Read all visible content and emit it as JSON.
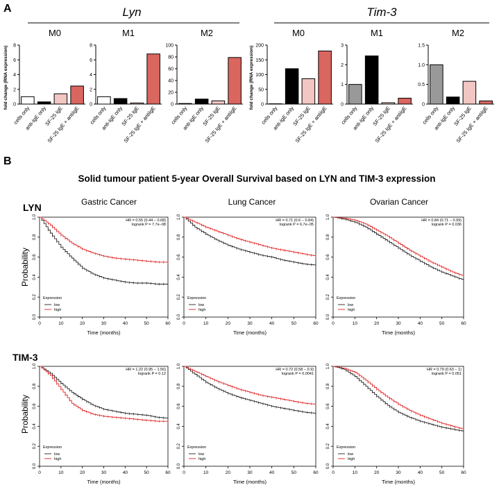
{
  "panel_a": {
    "label": "A",
    "ylabel": "fold change (RNA expression)",
    "groups": [
      {
        "title": "Lyn",
        "subtitles": [
          "M0",
          "M1",
          "M2"
        ]
      },
      {
        "title": "Tim-3",
        "subtitles": [
          "M0",
          "M1",
          "M2"
        ]
      }
    ]
  },
  "panel_b": {
    "label": "B",
    "title": "Solid tumour patient 5-year Overall Survival based on LYN and TIM-3 expression",
    "row_labels": [
      "LYN",
      "TIM-3"
    ],
    "column_titles": [
      "Gastric Cancer",
      "Lung Cancer",
      "Ovarian Cancer"
    ],
    "ylabel": "Probability",
    "xlabel": "Time (months)",
    "legend": {
      "title": "Expression",
      "low": "low",
      "high": "high"
    }
  },
  "colors": {
    "low": "#222222",
    "high": "#e02020"
  },
  "chart_data": [
    {
      "type": "bar",
      "group": "Lyn",
      "title": "M0",
      "categories": [
        "cells only",
        "anti-IgE only",
        "SF-25 IgE",
        "SF-25 IgE + antiIgE"
      ],
      "values": [
        1.0,
        0.3,
        1.4,
        2.45
      ],
      "colors": [
        "#ffffff",
        "#000000",
        "#f2c6c2",
        "#d9665f"
      ],
      "ylim": [
        0,
        8
      ],
      "yticks": [
        "0",
        "2",
        "4",
        "6",
        "8"
      ]
    },
    {
      "type": "bar",
      "group": "Lyn",
      "title": "M1",
      "categories": [
        "cells only",
        "anti-IgE only",
        "SF-25 IgE",
        "SF-25 IgE + antiIgE"
      ],
      "values": [
        1.0,
        0.75,
        0.15,
        6.8
      ],
      "colors": [
        "#ffffff",
        "#000000",
        "#f2c6c2",
        "#d9665f"
      ],
      "ylim": [
        0,
        8
      ],
      "yticks": [
        "0",
        "2",
        "4",
        "6",
        "8"
      ]
    },
    {
      "type": "bar",
      "group": "Lyn",
      "title": "M2",
      "categories": [
        "cells only",
        "anti-IgE only",
        "SF-25 IgE",
        "SF-25 IgE + antiIgE"
      ],
      "values": [
        1.0,
        8.5,
        5.5,
        79
      ],
      "colors": [
        "#ffffff",
        "#000000",
        "#f2c6c2",
        "#d9665f"
      ],
      "ylim": [
        0,
        100
      ],
      "yticks": [
        "0",
        "20",
        "40",
        "60",
        "80",
        "100"
      ]
    },
    {
      "type": "bar",
      "group": "Tim-3",
      "title": "M0",
      "categories": [
        "cells only",
        "anti-IgE only",
        "SF-25 IgE",
        "SF-25 IgE + antiIgE"
      ],
      "values": [
        1.0,
        120,
        86,
        180
      ],
      "colors": [
        "#999999",
        "#000000",
        "#f2c6c2",
        "#d9665f"
      ],
      "ylim": [
        0,
        200
      ],
      "yticks": [
        "0",
        "50",
        "100",
        "150",
        "200"
      ]
    },
    {
      "type": "bar",
      "group": "Tim-3",
      "title": "M1",
      "categories": [
        "cells only",
        "anti-IgE only",
        "SF-25 IgE",
        "SF-25 IgE + antiIgE"
      ],
      "values": [
        1.0,
        2.45,
        0.07,
        0.3
      ],
      "colors": [
        "#999999",
        "#000000",
        "#f2c6c2",
        "#d9665f"
      ],
      "ylim": [
        0,
        3
      ],
      "yticks": [
        "0",
        "1",
        "2",
        "3"
      ]
    },
    {
      "type": "bar",
      "group": "Tim-3",
      "title": "M2",
      "categories": [
        "cells only",
        "anti-IgE only",
        "SF-25 IgE",
        "SF-25 IgE + antiIgE"
      ],
      "values": [
        1.0,
        0.18,
        0.58,
        0.08
      ],
      "colors": [
        "#999999",
        "#000000",
        "#f2c6c2",
        "#d9665f"
      ],
      "ylim": [
        0,
        1.5
      ],
      "yticks": [
        "0",
        "0.5",
        "1.0",
        "1.5"
      ]
    },
    {
      "type": "line",
      "gene": "LYN",
      "cancer": "Gastric Cancer",
      "hr_text": "HR = 0.55 (0.44 − 0.68)",
      "p_text": "logrank P = 7.7e−08",
      "x": [
        0,
        5,
        10,
        15,
        20,
        25,
        30,
        35,
        40,
        45,
        50,
        55,
        60
      ],
      "series": [
        {
          "name": "low",
          "values": [
            1.0,
            0.84,
            0.7,
            0.59,
            0.49,
            0.43,
            0.39,
            0.37,
            0.35,
            0.34,
            0.34,
            0.33,
            0.33
          ]
        },
        {
          "name": "high",
          "values": [
            1.0,
            0.92,
            0.82,
            0.74,
            0.68,
            0.64,
            0.61,
            0.59,
            0.58,
            0.57,
            0.56,
            0.55,
            0.55
          ]
        }
      ],
      "xticks": [
        "0",
        "10",
        "20",
        "30",
        "40",
        "50",
        "60"
      ],
      "yticks": [
        "0.0",
        "0.2",
        "0.4",
        "0.6",
        "0.8",
        "1.0"
      ]
    },
    {
      "type": "line",
      "gene": "LYN",
      "cancer": "Lung Cancer",
      "hr_text": "HR = 0.71 (0.6 − 0.84)",
      "p_text": "logrank P = 6.7e−05",
      "x": [
        0,
        5,
        10,
        15,
        20,
        25,
        30,
        35,
        40,
        45,
        50,
        55,
        60
      ],
      "series": [
        {
          "name": "low",
          "values": [
            1.0,
            0.9,
            0.83,
            0.77,
            0.72,
            0.68,
            0.65,
            0.62,
            0.6,
            0.57,
            0.55,
            0.53,
            0.52
          ]
        },
        {
          "name": "high",
          "values": [
            1.0,
            0.95,
            0.9,
            0.86,
            0.82,
            0.78,
            0.75,
            0.72,
            0.69,
            0.67,
            0.65,
            0.63,
            0.61
          ]
        }
      ],
      "xticks": [
        "0",
        "10",
        "20",
        "30",
        "40",
        "50",
        "60"
      ],
      "yticks": [
        "0.0",
        "0.2",
        "0.4",
        "0.6",
        "0.8",
        "1.0"
      ]
    },
    {
      "type": "line",
      "gene": "LYN",
      "cancer": "Ovarian Cancer",
      "hr_text": "HR = 0.84 (0.71 − 0.99)",
      "p_text": "logrank P = 0.036",
      "x": [
        0,
        5,
        10,
        15,
        20,
        25,
        30,
        35,
        40,
        45,
        50,
        55,
        60
      ],
      "series": [
        {
          "name": "low",
          "values": [
            1.0,
            0.98,
            0.95,
            0.9,
            0.83,
            0.76,
            0.69,
            0.62,
            0.56,
            0.5,
            0.45,
            0.41,
            0.37
          ]
        },
        {
          "name": "high",
          "values": [
            1.0,
            0.99,
            0.97,
            0.93,
            0.87,
            0.81,
            0.74,
            0.67,
            0.61,
            0.55,
            0.5,
            0.45,
            0.41
          ]
        }
      ],
      "xticks": [
        "0",
        "10",
        "20",
        "30",
        "40",
        "50",
        "60"
      ],
      "yticks": [
        "0.0",
        "0.2",
        "0.4",
        "0.6",
        "0.8",
        "1.0"
      ]
    },
    {
      "type": "line",
      "gene": "TIM-3",
      "cancer": "Gastric Cancer",
      "hr_text": "HR = 1.22 (0.95 − 1.56)",
      "p_text": "logrank P = 0.12",
      "x": [
        0,
        5,
        10,
        15,
        20,
        25,
        30,
        35,
        40,
        45,
        50,
        55,
        60
      ],
      "series": [
        {
          "name": "low",
          "values": [
            1.0,
            0.93,
            0.83,
            0.74,
            0.67,
            0.61,
            0.57,
            0.55,
            0.53,
            0.52,
            0.51,
            0.49,
            0.48
          ]
        },
        {
          "name": "high",
          "values": [
            1.0,
            0.91,
            0.77,
            0.63,
            0.56,
            0.52,
            0.5,
            0.49,
            0.48,
            0.47,
            0.46,
            0.45,
            0.45
          ]
        }
      ],
      "xticks": [
        "0",
        "10",
        "20",
        "30",
        "40",
        "50",
        "60"
      ],
      "yticks": [
        "0.0",
        "0.2",
        "0.4",
        "0.6",
        "0.8",
        "1.0"
      ]
    },
    {
      "type": "line",
      "gene": "TIM-3",
      "cancer": "Lung Cancer",
      "hr_text": "HR = 0.72 (0.58 − 0.9)",
      "p_text": "logrank P = 0.0041",
      "x": [
        0,
        5,
        10,
        15,
        20,
        25,
        30,
        35,
        40,
        45,
        50,
        55,
        60
      ],
      "series": [
        {
          "name": "low",
          "values": [
            1.0,
            0.92,
            0.84,
            0.78,
            0.73,
            0.69,
            0.66,
            0.63,
            0.6,
            0.58,
            0.56,
            0.54,
            0.53
          ]
        },
        {
          "name": "high",
          "values": [
            1.0,
            0.95,
            0.9,
            0.85,
            0.81,
            0.77,
            0.74,
            0.71,
            0.69,
            0.67,
            0.65,
            0.63,
            0.62
          ]
        }
      ],
      "xticks": [
        "0",
        "10",
        "20",
        "30",
        "40",
        "50",
        "60"
      ],
      "yticks": [
        "0.0",
        "0.2",
        "0.4",
        "0.6",
        "0.8",
        "1.0"
      ]
    },
    {
      "type": "line",
      "gene": "TIM-3",
      "cancer": "Ovarian Cancer",
      "hr_text": "HR = 0.79 (0.63 − 1)",
      "p_text": "logrank P = 0.051",
      "x": [
        0,
        5,
        10,
        15,
        20,
        25,
        30,
        35,
        40,
        45,
        50,
        55,
        60
      ],
      "series": [
        {
          "name": "low",
          "values": [
            1.0,
            0.97,
            0.9,
            0.8,
            0.7,
            0.61,
            0.54,
            0.49,
            0.45,
            0.42,
            0.39,
            0.37,
            0.35
          ]
        },
        {
          "name": "high",
          "values": [
            1.0,
            0.98,
            0.94,
            0.86,
            0.77,
            0.69,
            0.62,
            0.56,
            0.51,
            0.47,
            0.43,
            0.4,
            0.37
          ]
        }
      ],
      "xticks": [
        "0",
        "10",
        "20",
        "30",
        "40",
        "50",
        "60"
      ],
      "yticks": [
        "0.0",
        "0.2",
        "0.4",
        "0.6",
        "0.8",
        "1.0"
      ]
    }
  ]
}
